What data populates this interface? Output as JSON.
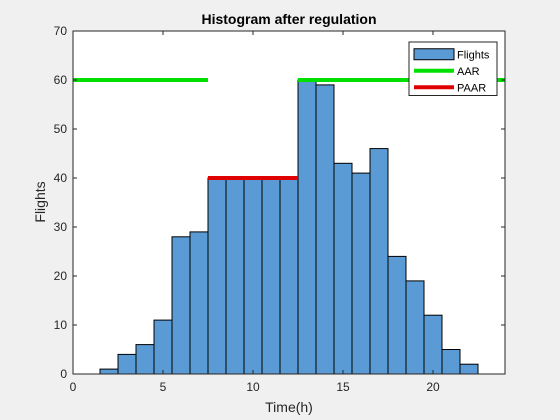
{
  "chart_data": {
    "type": "bar",
    "title": "Histogram after regulation",
    "xlabel": "Time(h)",
    "ylabel": "Flights",
    "xlim": [
      0,
      24
    ],
    "ylim": [
      0,
      70
    ],
    "xticks": [
      0,
      5,
      10,
      15,
      20
    ],
    "yticks": [
      0,
      10,
      20,
      30,
      40,
      50,
      60,
      70
    ],
    "bin_width": 1,
    "bins": [
      {
        "x": 2,
        "value": 1
      },
      {
        "x": 3,
        "value": 4
      },
      {
        "x": 4,
        "value": 6
      },
      {
        "x": 5,
        "value": 11
      },
      {
        "x": 6,
        "value": 28
      },
      {
        "x": 7,
        "value": 29
      },
      {
        "x": 8,
        "value": 40
      },
      {
        "x": 9,
        "value": 40
      },
      {
        "x": 10,
        "value": 40
      },
      {
        "x": 11,
        "value": 40
      },
      {
        "x": 12,
        "value": 40
      },
      {
        "x": 13,
        "value": 60
      },
      {
        "x": 14,
        "value": 59
      },
      {
        "x": 15,
        "value": 43
      },
      {
        "x": 16,
        "value": 41
      },
      {
        "x": 17,
        "value": 46
      },
      {
        "x": 18,
        "value": 24
      },
      {
        "x": 19,
        "value": 19
      },
      {
        "x": 20,
        "value": 12
      },
      {
        "x": 21,
        "value": 5
      },
      {
        "x": 22,
        "value": 2
      }
    ],
    "lines": [
      {
        "name": "AAR",
        "color": "#00e000",
        "segments": [
          {
            "x": [
              0,
              7.5
            ],
            "y": 60
          },
          {
            "x": [
              12.5,
              24
            ],
            "y": 60
          }
        ]
      },
      {
        "name": "PAAR",
        "color": "#e00000",
        "segments": [
          {
            "x": [
              7.5,
              12.5
            ],
            "y": 40
          }
        ]
      }
    ],
    "legend": {
      "placement": "top-right",
      "entries": [
        {
          "label": "Flights",
          "kind": "patch",
          "color": "#5b9bd5"
        },
        {
          "label": "AAR",
          "kind": "line",
          "color": "#00e000"
        },
        {
          "label": "PAAR",
          "kind": "line",
          "color": "#e00000"
        }
      ]
    },
    "bar_color": "#5b9bd5",
    "grid": false
  }
}
